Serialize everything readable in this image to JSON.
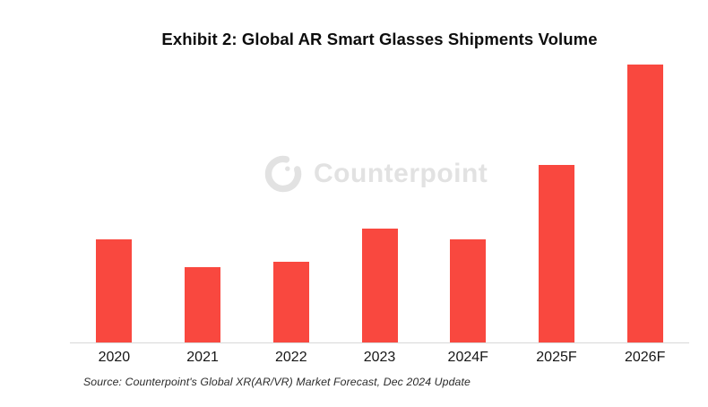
{
  "header": {
    "title": "Exhibit 2: Global AR Smart Glasses Shipments Volume"
  },
  "watermark": {
    "brand_text": "Counterpoint",
    "logo_icon": "counterpoint-ring-logo",
    "color": "#e2e2e2"
  },
  "footer": {
    "source_note": "Source: Counterpoint's Global XR(AR/VR) Market Forecast, Dec 2024 Update"
  },
  "colors": {
    "bar": "#f9483f",
    "axis_line": "#d9d9d9",
    "title_text": "#0d0d0d",
    "tick_label_text": "#161616",
    "source_text": "#2b2b2b",
    "background": "#ffffff"
  },
  "chart_data": {
    "type": "bar",
    "title": "Exhibit 2: Global AR Smart Glasses Shipments Volume",
    "categories": [
      "2020",
      "2021",
      "2022",
      "2023",
      "2024F",
      "2025F",
      "2026F"
    ],
    "values": [
      37,
      27,
      29,
      41,
      37,
      64,
      100
    ],
    "value_scale_note": "no numeric y-axis shown; values are a relative index estimated from bar heights with 2026F = 100",
    "xlabel": "",
    "ylabel": "",
    "ylim": [
      0,
      104
    ],
    "grid": false,
    "legend": false,
    "bar_color": "#f9483f",
    "source": "Source: Counterpoint's Global XR(AR/VR) Market Forecast, Dec 2024 Update"
  }
}
